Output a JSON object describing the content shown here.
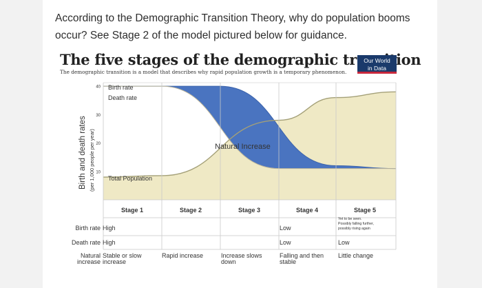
{
  "question": "According to the Demographic Transition Theory, why do population booms occur? See Stage 2 of the model pictured below for guidance.",
  "header": {
    "title": "The five stages of the demographic transition",
    "subtitle": "The demographic transition is a model that describes why rapid population growth is a temporary phenomenon.",
    "logo_line1": "Our World",
    "logo_line2": "in Data"
  },
  "chart_data": {
    "type": "area",
    "title": "The five stages of the demographic transition",
    "ylabel": "Birth and death rates",
    "ylabel_unit": "(per 1,000 people per year)",
    "y_ticks": [
      40,
      30,
      20,
      10
    ],
    "ylim": [
      0,
      40
    ],
    "series": [
      {
        "name": "Birth rate",
        "stage_values": [
          40,
          40,
          30,
          12,
          10
        ]
      },
      {
        "name": "Death rate",
        "stage_values": [
          40,
          32,
          12,
          10,
          10
        ]
      },
      {
        "name": "Total Population",
        "stage_values": [
          8,
          9,
          18,
          30,
          36
        ]
      }
    ],
    "area_label": "Natural Increase",
    "stages": [
      "Stage 1",
      "Stage 2",
      "Stage 3",
      "Stage 4",
      "Stage 5"
    ],
    "stage5_note": [
      "Yet to be seen.",
      "Possibly falling further,",
      "possibly rising again"
    ],
    "rows": [
      {
        "label": "Birth rate",
        "values": [
          "High",
          "",
          "",
          "Low",
          ""
        ]
      },
      {
        "label": "Death rate",
        "values": [
          "High",
          "",
          "",
          "Low",
          "Low"
        ]
      },
      {
        "label_lines": [
          "Natural",
          "increase"
        ],
        "values": [
          "Stable or slow increase",
          "Rapid increase",
          "Increase slows down",
          "Falling and then stable",
          "Little change"
        ]
      }
    ],
    "colors": {
      "natural_increase": "#4a74c0",
      "population": "#efe9c5",
      "grid": "#c8c8c8"
    }
  }
}
